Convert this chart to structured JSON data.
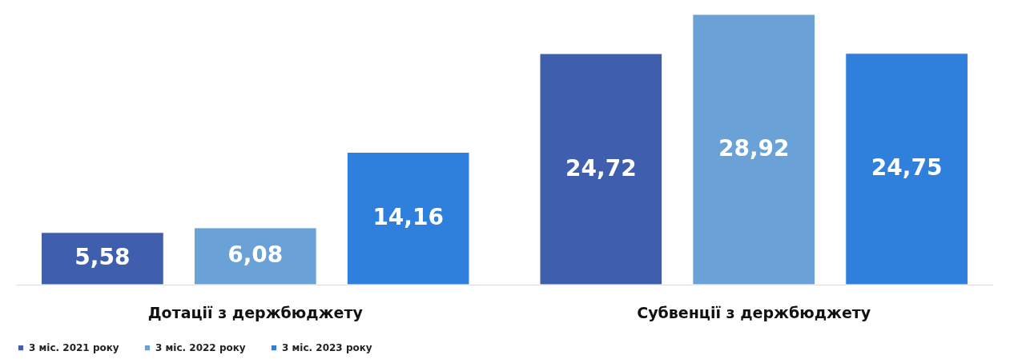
{
  "chart_data": {
    "type": "bar",
    "categories": [
      "Дотації з держбюджету",
      "Субвенції з держбюджету"
    ],
    "series": [
      {
        "name": "3 міс. 2021 року",
        "color": "#3f5fae",
        "values": [
          5.58,
          24.72
        ],
        "value_labels": [
          "5,58",
          "24,72"
        ]
      },
      {
        "name": "3 міс. 2022 року",
        "color": "#6aa2d8",
        "values": [
          6.08,
          28.92
        ],
        "value_labels": [
          "6,08",
          "28,92"
        ]
      },
      {
        "name": "3 міс. 2023 року",
        "color": "#2f80dc",
        "values": [
          14.16,
          24.75
        ],
        "value_labels": [
          "14,16",
          "24,75"
        ]
      }
    ],
    "legend": "bottom"
  }
}
